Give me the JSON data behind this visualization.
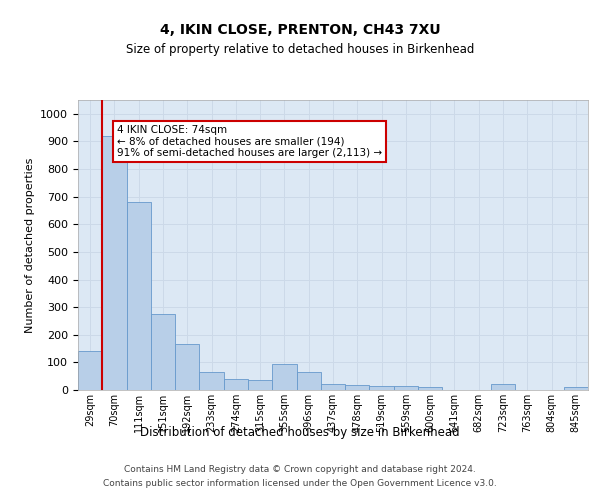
{
  "title": "4, IKIN CLOSE, PRENTON, CH43 7XU",
  "subtitle": "Size of property relative to detached houses in Birkenhead",
  "xlabel": "Distribution of detached houses by size in Birkenhead",
  "ylabel": "Number of detached properties",
  "categories": [
    "29sqm",
    "70sqm",
    "111sqm",
    "151sqm",
    "192sqm",
    "233sqm",
    "274sqm",
    "315sqm",
    "355sqm",
    "396sqm",
    "437sqm",
    "478sqm",
    "519sqm",
    "559sqm",
    "600sqm",
    "641sqm",
    "682sqm",
    "723sqm",
    "763sqm",
    "804sqm",
    "845sqm"
  ],
  "values": [
    140,
    920,
    680,
    275,
    165,
    65,
    40,
    38,
    95,
    65,
    20,
    18,
    15,
    13,
    10,
    0,
    0,
    22,
    0,
    0,
    12
  ],
  "bar_color": "#b8cfe8",
  "bar_edge_color": "#6699cc",
  "grid_color": "#ccd9e8",
  "background_color": "#dce8f4",
  "annotation_text": "4 IKIN CLOSE: 74sqm\n← 8% of detached houses are smaller (194)\n91% of semi-detached houses are larger (2,113) →",
  "annotation_box_color": "#ffffff",
  "annotation_box_edge": "#cc0000",
  "vline_color": "#cc0000",
  "ylim": [
    0,
    1050
  ],
  "yticks": [
    0,
    100,
    200,
    300,
    400,
    500,
    600,
    700,
    800,
    900,
    1000
  ],
  "footer_line1": "Contains HM Land Registry data © Crown copyright and database right 2024.",
  "footer_line2": "Contains public sector information licensed under the Open Government Licence v3.0."
}
